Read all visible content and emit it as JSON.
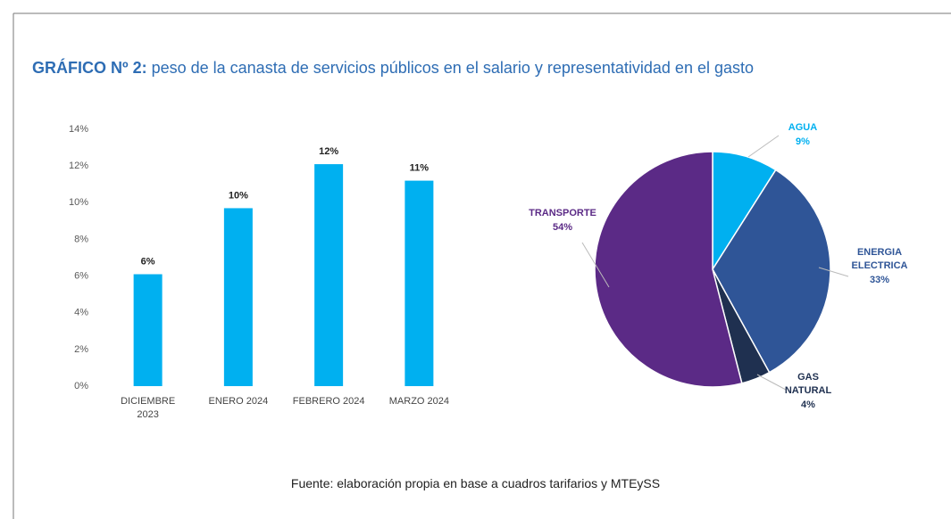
{
  "header": {
    "label": "GRÁFICO Nº 2:",
    "title": "peso de la canasta de servicios públicos en el salario y representatividad en el gasto"
  },
  "source": "Fuente: elaboración propia en base a cuadros tarifarios y MTEySS",
  "chart_data": [
    {
      "type": "bar",
      "categories": [
        "DICIEMBRE\n2023",
        "ENERO 2024",
        "FEBRERO 2024",
        "MARZO 2024"
      ],
      "values": [
        6.1,
        9.7,
        12.1,
        11.2
      ],
      "value_labels": [
        "6%",
        "10%",
        "12%",
        "11%"
      ],
      "color": "#00b0f0",
      "ylim": [
        0,
        14
      ],
      "yticks": [
        {
          "value": 0,
          "label": "0%"
        },
        {
          "value": 2,
          "label": "2%"
        },
        {
          "value": 4,
          "label": "4%"
        },
        {
          "value": 6,
          "label": "6%"
        },
        {
          "value": 8,
          "label": "8%"
        },
        {
          "value": 10,
          "label": "10%"
        },
        {
          "value": 12,
          "label": "12%"
        },
        {
          "value": 14,
          "label": "14%"
        }
      ],
      "grid": false
    },
    {
      "type": "pie",
      "categories": [
        "AGUA",
        "ENERGIA\nELECTRICA",
        "GAS\nNATURAL",
        "TRANSPORTE"
      ],
      "values": [
        9,
        33,
        4,
        54
      ],
      "value_labels": [
        "9%",
        "33%",
        "4%",
        "54%"
      ],
      "colors": [
        "#00b0f0",
        "#2f5597",
        "#1f3050",
        "#5b2a86"
      ],
      "label_colors": [
        "#00b0f0",
        "#2f5597",
        "#1f3050",
        "#5b2a86"
      ]
    }
  ]
}
